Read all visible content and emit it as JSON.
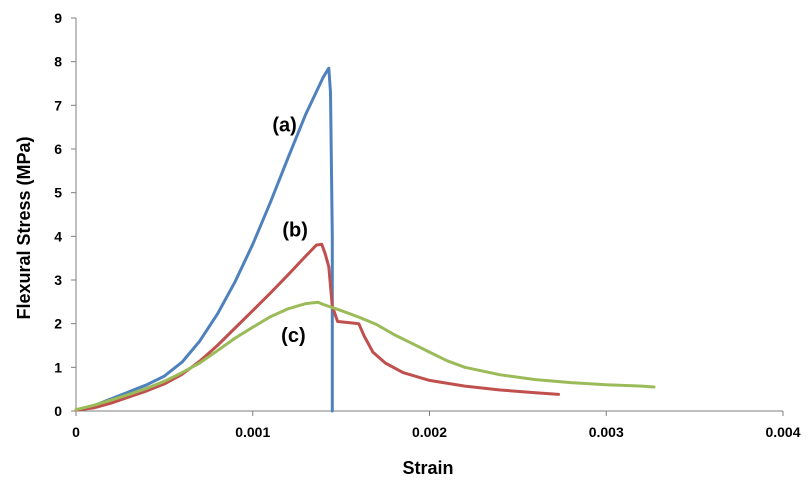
{
  "chart_data": {
    "type": "line",
    "xlabel": "Strain",
    "ylabel": "Flexural Stress (MPa)",
    "xlim": [
      0,
      0.004
    ],
    "ylim": [
      0,
      9
    ],
    "x_ticks": [
      "0",
      "0.001",
      "0.002",
      "0.003",
      "0.004"
    ],
    "x_tick_values": [
      0,
      0.001,
      0.002,
      0.003,
      0.004
    ],
    "y_ticks": [
      "0",
      "1",
      "2",
      "3",
      "4",
      "5",
      "6",
      "7",
      "8",
      "9"
    ],
    "y_tick_values": [
      0,
      1,
      2,
      3,
      4,
      5,
      6,
      7,
      8,
      9
    ],
    "grid": false,
    "legend": "none",
    "series": [
      {
        "color": "#4f81bd",
        "points": [
          [
            0,
            0.03
          ],
          [
            0.0001,
            0.12
          ],
          [
            0.0002,
            0.28
          ],
          [
            0.0003,
            0.44
          ],
          [
            0.0004,
            0.6
          ],
          [
            0.0005,
            0.8
          ],
          [
            0.0006,
            1.12
          ],
          [
            0.0007,
            1.6
          ],
          [
            0.0008,
            2.22
          ],
          [
            0.0009,
            2.96
          ],
          [
            0.001,
            3.82
          ],
          [
            0.0011,
            4.78
          ],
          [
            0.0012,
            5.8
          ],
          [
            0.0013,
            6.8
          ],
          [
            0.0014,
            7.65
          ],
          [
            0.00143,
            7.85
          ],
          [
            0.00144,
            7.3
          ],
          [
            0.00145,
            4.0
          ],
          [
            0.00145,
            0.0
          ]
        ]
      },
      {
        "color": "#c0504d",
        "points": [
          [
            0,
            0.02
          ],
          [
            0.0001,
            0.07
          ],
          [
            0.0002,
            0.18
          ],
          [
            0.0003,
            0.32
          ],
          [
            0.0004,
            0.46
          ],
          [
            0.0005,
            0.62
          ],
          [
            0.0006,
            0.84
          ],
          [
            0.0007,
            1.14
          ],
          [
            0.0008,
            1.5
          ],
          [
            0.0009,
            1.9
          ],
          [
            0.001,
            2.3
          ],
          [
            0.0011,
            2.7
          ],
          [
            0.0012,
            3.12
          ],
          [
            0.0013,
            3.55
          ],
          [
            0.00136,
            3.8
          ],
          [
            0.00139,
            3.82
          ],
          [
            0.00141,
            3.6
          ],
          [
            0.00143,
            3.3
          ],
          [
            0.00145,
            2.4
          ],
          [
            0.00148,
            2.05
          ],
          [
            0.00155,
            2.02
          ],
          [
            0.0016,
            2.0
          ],
          [
            0.00163,
            1.72
          ],
          [
            0.00168,
            1.35
          ],
          [
            0.00175,
            1.1
          ],
          [
            0.00185,
            0.88
          ],
          [
            0.002,
            0.7
          ],
          [
            0.0022,
            0.57
          ],
          [
            0.0024,
            0.48
          ],
          [
            0.0026,
            0.42
          ],
          [
            0.00273,
            0.38
          ]
        ]
      },
      {
        "color": "#9bbb59",
        "points": [
          [
            0,
            0.03
          ],
          [
            0.0001,
            0.13
          ],
          [
            0.0002,
            0.25
          ],
          [
            0.0003,
            0.38
          ],
          [
            0.0004,
            0.52
          ],
          [
            0.0005,
            0.68
          ],
          [
            0.0006,
            0.88
          ],
          [
            0.0007,
            1.1
          ],
          [
            0.0008,
            1.38
          ],
          [
            0.0009,
            1.67
          ],
          [
            0.001,
            1.92
          ],
          [
            0.0011,
            2.16
          ],
          [
            0.0012,
            2.34
          ],
          [
            0.0013,
            2.46
          ],
          [
            0.00137,
            2.49
          ],
          [
            0.0014,
            2.44
          ],
          [
            0.0015,
            2.3
          ],
          [
            0.0016,
            2.15
          ],
          [
            0.0017,
            1.98
          ],
          [
            0.0018,
            1.75
          ],
          [
            0.0019,
            1.55
          ],
          [
            0.002,
            1.35
          ],
          [
            0.0021,
            1.15
          ],
          [
            0.0022,
            1.0
          ],
          [
            0.0024,
            0.83
          ],
          [
            0.0026,
            0.72
          ],
          [
            0.0028,
            0.65
          ],
          [
            0.003,
            0.6
          ],
          [
            0.0032,
            0.57
          ],
          [
            0.00327,
            0.55
          ]
        ]
      }
    ],
    "annotations": [
      {
        "text": "(a)",
        "x": 0.00118,
        "y": 6.4
      },
      {
        "text": "(b)",
        "x": 0.00124,
        "y": 4.0
      },
      {
        "text": "(c)",
        "x": 0.00123,
        "y": 1.58
      }
    ]
  }
}
